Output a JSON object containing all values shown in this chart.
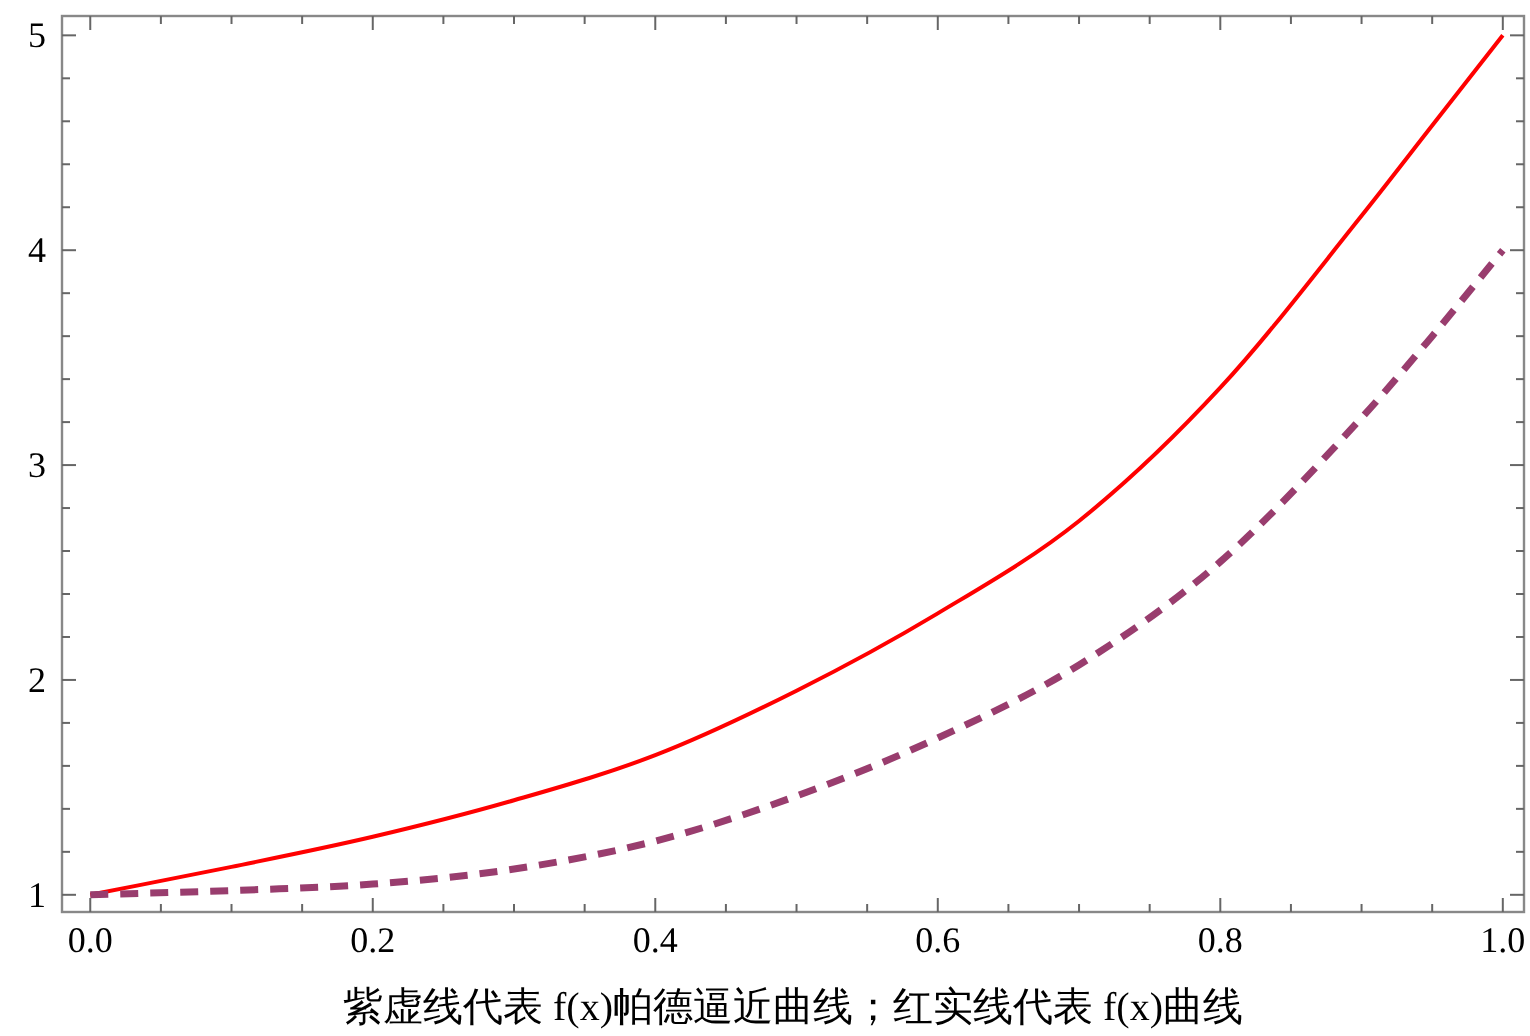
{
  "chart_data": {
    "type": "line",
    "xlabel": "紫虚线代表 f(x)帕德逼近曲线；红实线代表 f(x)曲线",
    "x": [
      0,
      0.1,
      0.2,
      0.3,
      0.4,
      0.5,
      0.6,
      0.7,
      0.8,
      0.9,
      0.95,
      1.0
    ],
    "series": [
      {
        "color": "#ff0000",
        "line_style": "solid",
        "values": [
          1.0,
          1.13,
          1.27,
          1.44,
          1.65,
          1.95,
          2.31,
          2.74,
          3.36,
          4.16,
          4.58,
          5.0
        ]
      },
      {
        "color": "#993d6e",
        "line_style": "dashed",
        "values": [
          1.0,
          1.02,
          1.05,
          1.12,
          1.25,
          1.46,
          1.73,
          2.07,
          2.55,
          3.22,
          3.6,
          4.0
        ]
      }
    ],
    "xlim": [
      -0.02,
      1.015
    ],
    "ylim": [
      0.92,
      5.09
    ],
    "xticks": [
      {
        "value": 0,
        "label": "0.0"
      },
      {
        "value": 0.05,
        "label": null
      },
      {
        "value": 0.1,
        "label": null
      },
      {
        "value": 0.15,
        "label": null
      },
      {
        "value": 0.2,
        "label": "0.2"
      },
      {
        "value": 0.25,
        "label": null
      },
      {
        "value": 0.3,
        "label": null
      },
      {
        "value": 0.35,
        "label": null
      },
      {
        "value": 0.4,
        "label": "0.4"
      },
      {
        "value": 0.45,
        "label": null
      },
      {
        "value": 0.5,
        "label": null
      },
      {
        "value": 0.55,
        "label": null
      },
      {
        "value": 0.6,
        "label": "0.6"
      },
      {
        "value": 0.65,
        "label": null
      },
      {
        "value": 0.7,
        "label": null
      },
      {
        "value": 0.75,
        "label": null
      },
      {
        "value": 0.8,
        "label": "0.8"
      },
      {
        "value": 0.85,
        "label": null
      },
      {
        "value": 0.9,
        "label": null
      },
      {
        "value": 0.95,
        "label": null
      },
      {
        "value": 1.0,
        "label": "1.0"
      }
    ],
    "yticks": [
      1,
      {
        "value": 1.2,
        "label": null
      },
      {
        "value": 1.4,
        "label": null
      },
      {
        "value": 1.6,
        "label": null
      },
      {
        "value": 1.8,
        "label": null
      },
      2,
      {
        "value": 2.2,
        "label": null
      },
      {
        "value": 2.4,
        "label": null
      },
      {
        "value": 2.6,
        "label": null
      },
      {
        "value": 2.8,
        "label": null
      },
      3,
      {
        "value": 3.2,
        "label": null
      },
      {
        "value": 3.4,
        "label": null
      },
      {
        "value": 3.6,
        "label": null
      },
      {
        "value": 3.8,
        "label": null
      },
      4,
      {
        "value": 4.2,
        "label": null
      },
      {
        "value": 4.4,
        "label": null
      },
      {
        "value": 4.6,
        "label": null
      },
      {
        "value": 4.8,
        "label": null
      },
      5
    ],
    "grid": false
  }
}
